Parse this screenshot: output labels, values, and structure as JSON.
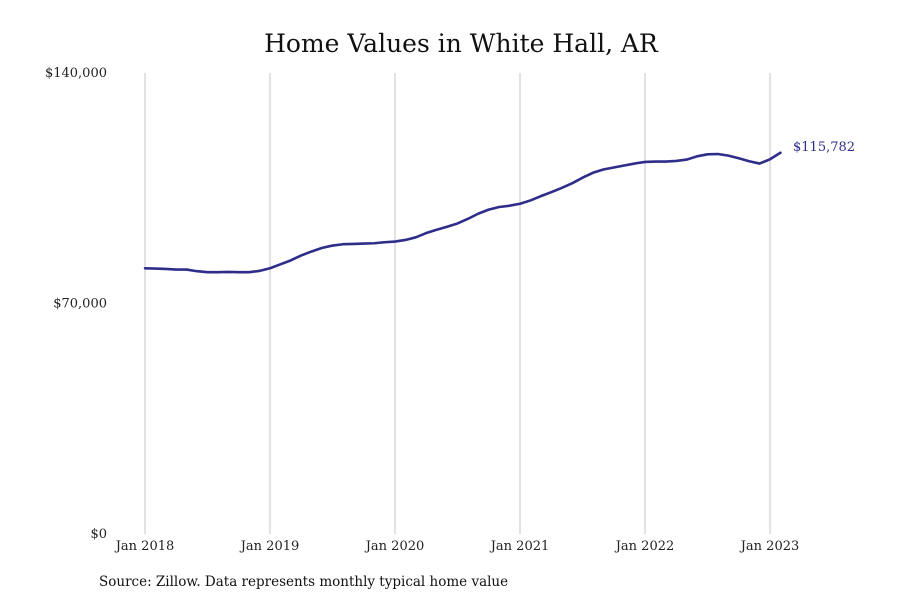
{
  "chart_data": {
    "type": "line",
    "title": "Home Values in White Hall, AR",
    "xlabel": "",
    "ylabel": "",
    "source_note": "Source: Zillow. Data represents monthly typical home value",
    "ylim": [
      0,
      140000
    ],
    "y_ticks": [
      {
        "value": 0,
        "label": "$0"
      },
      {
        "value": 70000,
        "label": "$70,000"
      },
      {
        "value": 140000,
        "label": "$140,000"
      }
    ],
    "x_ticks": [
      {
        "value": "2018-01",
        "label": "Jan 2018"
      },
      {
        "value": "2019-01",
        "label": "Jan 2019"
      },
      {
        "value": "2020-01",
        "label": "Jan 2020"
      },
      {
        "value": "2021-01",
        "label": "Jan 2021"
      },
      {
        "value": "2022-01",
        "label": "Jan 2022"
      },
      {
        "value": "2023-01",
        "label": "Jan 2023"
      }
    ],
    "grid": {
      "vertical": true,
      "horizontal": false
    },
    "line_color": "#2e2d8a",
    "grid_color": "#c4c4c4",
    "end_label": "$115,782",
    "series": [
      {
        "x": [
          "2018-01",
          "2018-02",
          "2018-03",
          "2018-04",
          "2018-05",
          "2018-06",
          "2018-07",
          "2018-08",
          "2018-09",
          "2018-10",
          "2018-11",
          "2018-12",
          "2019-01",
          "2019-02",
          "2019-03",
          "2019-04",
          "2019-05",
          "2019-06",
          "2019-07",
          "2019-08",
          "2019-09",
          "2019-10",
          "2019-11",
          "2019-12",
          "2020-01",
          "2020-02",
          "2020-03",
          "2020-04",
          "2020-05",
          "2020-06",
          "2020-07",
          "2020-08",
          "2020-09",
          "2020-10",
          "2020-11",
          "2020-12",
          "2021-01",
          "2021-02",
          "2021-03",
          "2021-04",
          "2021-05",
          "2021-06",
          "2021-07",
          "2021-08",
          "2021-09",
          "2021-10",
          "2021-11",
          "2021-12",
          "2022-01",
          "2022-02",
          "2022-03",
          "2022-04",
          "2022-05",
          "2022-06",
          "2022-07",
          "2022-08",
          "2022-09",
          "2022-10",
          "2022-11",
          "2022-12",
          "2023-01",
          "2023-02"
        ],
        "values": [
          80700,
          80600,
          80500,
          80300,
          80300,
          79800,
          79500,
          79500,
          79600,
          79500,
          79500,
          79900,
          80700,
          81900,
          83100,
          84600,
          85800,
          86900,
          87600,
          88000,
          88100,
          88200,
          88300,
          88600,
          88800,
          89300,
          90100,
          91400,
          92400,
          93300,
          94300,
          95700,
          97300,
          98500,
          99300,
          99700,
          100300,
          101300,
          102600,
          103800,
          105100,
          106500,
          108200,
          109700,
          110700,
          111300,
          111900,
          112500,
          113000,
          113100,
          113100,
          113300,
          113700,
          114700,
          115300,
          115400,
          114900,
          114100,
          113200,
          112500,
          113800,
          115782
        ]
      }
    ]
  }
}
